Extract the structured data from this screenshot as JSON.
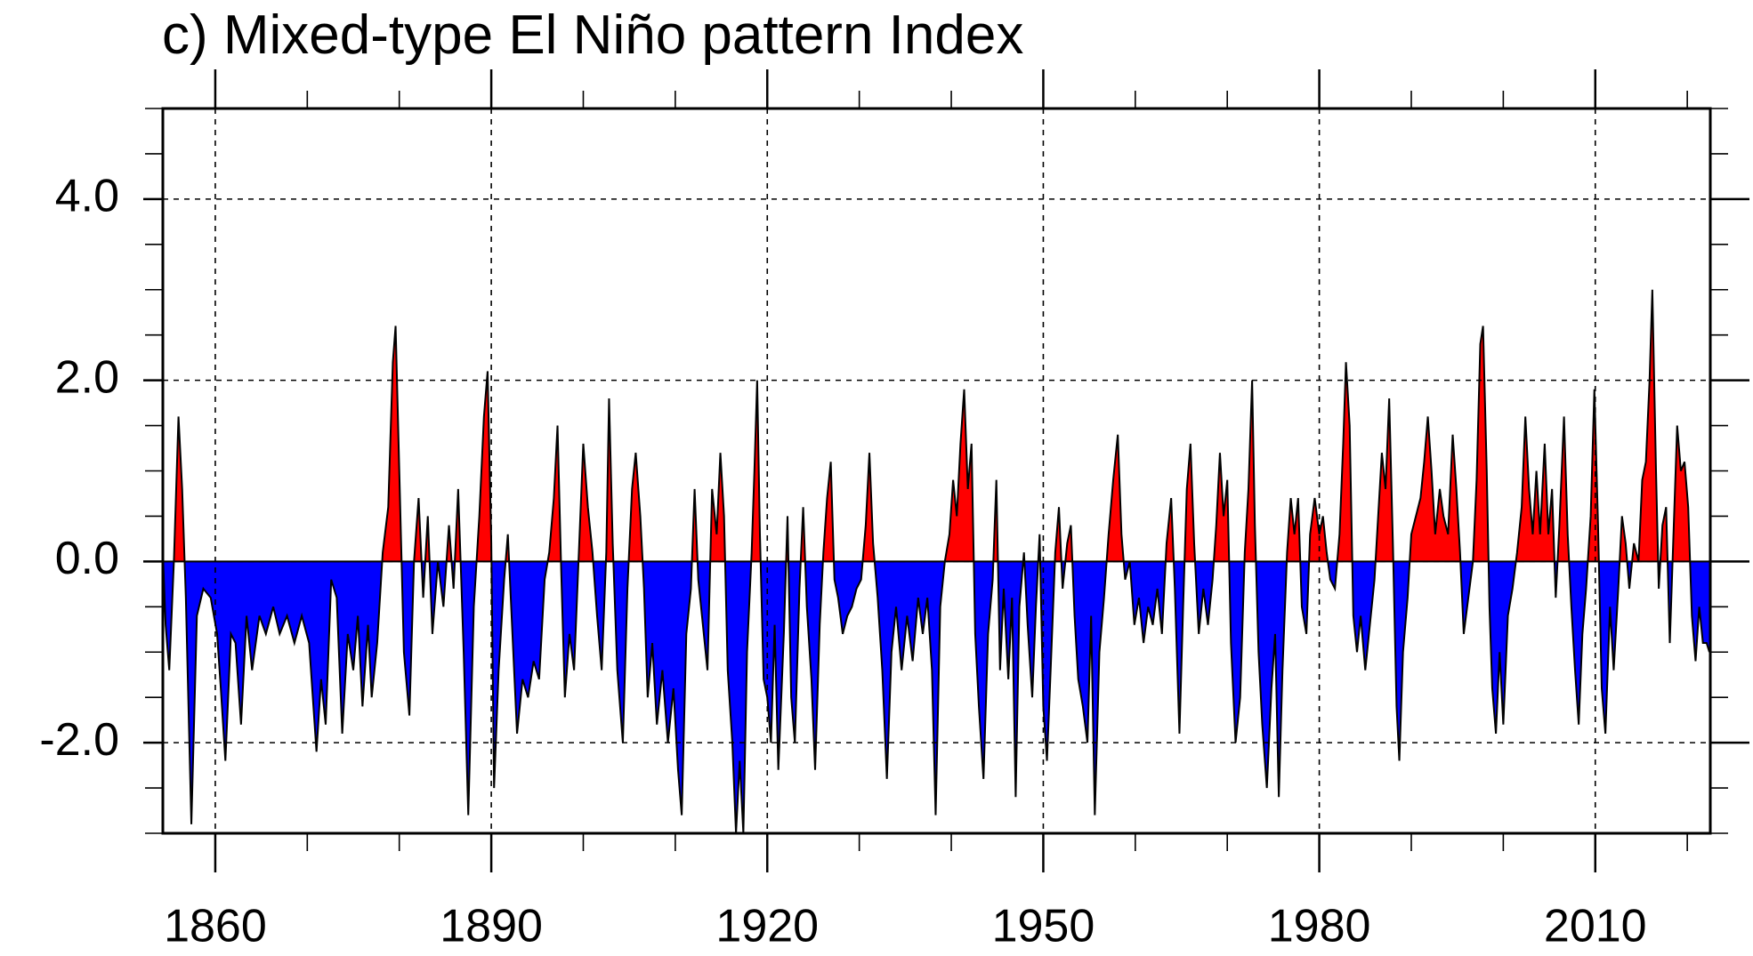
{
  "chart_data": {
    "type": "area",
    "title": "c) Mixed-type El Niño pattern Index",
    "xlim": [
      1854.3,
      2022.5
    ],
    "ylim": [
      -3,
      5
    ],
    "xticks": [
      1860,
      1890,
      1920,
      1950,
      1980,
      2010
    ],
    "yticks": [
      {
        "value": -2,
        "label": "-2.0"
      },
      {
        "value": 0,
        "label": "0.0"
      },
      {
        "value": 2,
        "label": "2.0"
      },
      {
        "value": 4,
        "label": "4.0"
      }
    ],
    "grid": true,
    "positive_color": "#ff0000",
    "negative_color": "#0000ff",
    "line_color": "#000000",
    "x": [
      1854.3,
      1854.6,
      1855.0,
      1855.5,
      1856.0,
      1856.4,
      1856.8,
      1857.4,
      1858.0,
      1858.7,
      1859.5,
      1860.2,
      1860.6,
      1861.1,
      1861.7,
      1862.2,
      1862.8,
      1863.4,
      1864.0,
      1864.8,
      1865.5,
      1866.3,
      1867.0,
      1867.8,
      1868.6,
      1869.4,
      1870.2,
      1871.0,
      1871.5,
      1872.0,
      1872.6,
      1873.2,
      1873.8,
      1874.4,
      1875.0,
      1875.5,
      1876.0,
      1876.6,
      1877.0,
      1877.6,
      1878.2,
      1878.8,
      1879.3,
      1879.6,
      1880.0,
      1880.5,
      1881.1,
      1881.6,
      1882.1,
      1882.6,
      1883.1,
      1883.6,
      1884.2,
      1884.8,
      1885.4,
      1885.9,
      1886.4,
      1887.0,
      1887.5,
      1888.1,
      1888.7,
      1889.2,
      1889.6,
      1890.0,
      1890.3,
      1890.8,
      1891.4,
      1891.8,
      1892.3,
      1892.8,
      1893.4,
      1894.0,
      1894.6,
      1895.2,
      1895.8,
      1896.3,
      1896.8,
      1897.2,
      1897.6,
      1898.0,
      1898.5,
      1899.0,
      1899.6,
      1900.0,
      1900.5,
      1901.0,
      1901.5,
      1902.0,
      1902.5,
      1902.8,
      1903.2,
      1903.7,
      1904.3,
      1904.8,
      1905.3,
      1905.7,
      1906.2,
      1906.6,
      1907.0,
      1907.5,
      1908.0,
      1908.6,
      1909.2,
      1909.8,
      1910.3,
      1910.7,
      1911.2,
      1911.7,
      1912.1,
      1912.5,
      1912.9,
      1913.5,
      1914.0,
      1914.5,
      1914.9,
      1915.3,
      1915.7,
      1916.2,
      1916.6,
      1917.0,
      1917.4,
      1917.8,
      1918.3,
      1918.6,
      1918.9,
      1919.2,
      1919.6,
      1920.0,
      1920.4,
      1920.8,
      1921.2,
      1921.8,
      1922.2,
      1922.6,
      1923.0,
      1923.5,
      1923.9,
      1924.3,
      1924.8,
      1925.2,
      1925.7,
      1926.1,
      1926.5,
      1926.9,
      1927.3,
      1927.7,
      1928.2,
      1928.7,
      1929.2,
      1929.7,
      1930.2,
      1930.7,
      1931.1,
      1931.5,
      1932.0,
      1932.5,
      1933.0,
      1933.5,
      1934.0,
      1934.6,
      1935.2,
      1935.8,
      1936.4,
      1936.9,
      1937.4,
      1937.9,
      1938.3,
      1938.8,
      1939.3,
      1939.8,
      1940.2,
      1940.6,
      1941.0,
      1941.4,
      1941.8,
      1942.2,
      1942.6,
      1943.0,
      1943.5,
      1944.0,
      1944.5,
      1944.9,
      1945.3,
      1945.7,
      1946.2,
      1946.6,
      1947.0,
      1947.4,
      1947.9,
      1948.3,
      1948.8,
      1949.2,
      1949.6,
      1950.0,
      1950.4,
      1950.8,
      1951.3,
      1951.7,
      1952.1,
      1952.6,
      1953.0,
      1953.4,
      1953.8,
      1954.3,
      1954.8,
      1955.2,
      1955.6,
      1956.1,
      1956.6,
      1957.1,
      1957.6,
      1958.1,
      1958.5,
      1958.9,
      1959.4,
      1959.9,
      1960.4,
      1960.9,
      1961.4,
      1961.9,
      1962.4,
      1962.9,
      1963.4,
      1963.9,
      1964.3,
      1964.8,
      1965.2,
      1965.6,
      1966.0,
      1966.4,
      1966.9,
      1967.4,
      1967.9,
      1968.4,
      1968.8,
      1969.2,
      1969.6,
      1970.0,
      1970.4,
      1970.9,
      1971.4,
      1971.9,
      1972.3,
      1972.7,
      1973.0,
      1973.4,
      1973.8,
      1974.3,
      1974.8,
      1975.2,
      1975.6,
      1976.0,
      1976.5,
      1976.9,
      1977.3,
      1977.7,
      1978.1,
      1978.6,
      1979.0,
      1979.5,
      1980.0,
      1980.4,
      1980.8,
      1981.2,
      1981.7,
      1982.2,
      1982.6,
      1982.9,
      1983.3,
      1983.7,
      1984.1,
      1984.5,
      1985.0,
      1985.5,
      1986.0,
      1986.4,
      1986.8,
      1987.2,
      1987.6,
      1988.0,
      1988.4,
      1988.7,
      1989.1,
      1989.6,
      1990.0,
      1990.5,
      1991.0,
      1991.4,
      1991.8,
      1992.2,
      1992.6,
      1993.1,
      1993.5,
      1994.0,
      1994.5,
      1994.9,
      1995.3,
      1995.7,
      1996.2,
      1996.7,
      1997.1,
      1997.5,
      1997.8,
      1998.2,
      1998.5,
      1998.8,
      1999.2,
      1999.6,
      2000.0,
      2000.5,
      2001.0,
      2001.5,
      2002.0,
      2002.4,
      2002.8,
      2003.2,
      2003.6,
      2004.0,
      2004.5,
      2004.9,
      2005.3,
      2005.7,
      2006.1,
      2006.6,
      2007.0,
      2007.4,
      2007.8,
      2008.2,
      2008.6,
      2009.0,
      2009.5,
      2009.9,
      2010.3,
      2010.7,
      2011.1,
      2011.6,
      2012.0,
      2012.5,
      2012.9,
      2013.3,
      2013.7,
      2014.2,
      2014.7,
      2015.1,
      2015.5,
      2015.9,
      2016.2,
      2016.6,
      2016.9,
      2017.3,
      2017.7,
      2018.1,
      2018.5,
      2018.9,
      2019.3,
      2019.7,
      2020.1,
      2020.5,
      2020.9,
      2021.3,
      2021.7,
      2022.1,
      2022.4
    ],
    "values": [
      0.1,
      -0.7,
      -1.2,
      0.0,
      1.6,
      0.8,
      -0.4,
      -2.9,
      -0.6,
      -0.3,
      -0.4,
      -0.8,
      -1.4,
      -2.2,
      -0.8,
      -0.9,
      -1.8,
      -0.6,
      -1.2,
      -0.6,
      -0.8,
      -0.5,
      -0.8,
      -0.6,
      -0.9,
      -0.6,
      -0.9,
      -2.1,
      -1.3,
      -1.8,
      -0.2,
      -0.4,
      -1.9,
      -0.8,
      -1.2,
      -0.6,
      -1.6,
      -0.7,
      -1.5,
      -0.9,
      0.1,
      0.6,
      2.2,
      2.6,
      1.0,
      -1.0,
      -1.7,
      0.0,
      0.7,
      -0.4,
      0.5,
      -0.8,
      0.0,
      -0.5,
      0.4,
      -0.3,
      0.8,
      -1.0,
      -2.8,
      -0.5,
      0.5,
      1.6,
      2.1,
      0.2,
      -2.5,
      -1.2,
      -0.2,
      0.3,
      -0.8,
      -1.9,
      -1.3,
      -1.5,
      -1.1,
      -1.3,
      -0.2,
      0.1,
      0.7,
      1.5,
      -0.1,
      -1.5,
      -0.8,
      -1.2,
      0.3,
      1.3,
      0.6,
      0.1,
      -0.6,
      -1.2,
      0.1,
      1.8,
      0.2,
      -1.2,
      -2.0,
      -0.3,
      0.8,
      1.2,
      0.5,
      -0.3,
      -1.5,
      -0.9,
      -1.8,
      -1.2,
      -2.0,
      -1.4,
      -2.3,
      -2.8,
      -0.8,
      -0.3,
      0.8,
      -0.2,
      -0.6,
      -1.2,
      0.8,
      0.3,
      1.2,
      0.5,
      -1.2,
      -2.0,
      -3.0,
      -2.2,
      -3.0,
      -1.0,
      0.1,
      1.0,
      2.0,
      0.3,
      -1.3,
      -1.5,
      -2.0,
      -0.7,
      -2.3,
      -0.8,
      0.5,
      -1.5,
      -2.0,
      -0.3,
      0.6,
      -0.5,
      -1.3,
      -2.3,
      -0.7,
      0.1,
      0.7,
      1.1,
      -0.2,
      -0.4,
      -0.8,
      -0.6,
      -0.5,
      -0.3,
      -0.2,
      0.4,
      1.2,
      0.2,
      -0.4,
      -1.2,
      -2.4,
      -1.0,
      -0.5,
      -1.2,
      -0.6,
      -1.1,
      -0.4,
      -0.8,
      -0.4,
      -1.2,
      -2.8,
      -0.5,
      0.0,
      0.3,
      0.9,
      0.5,
      1.3,
      1.9,
      0.8,
      1.3,
      -0.8,
      -1.6,
      -2.4,
      -0.8,
      -0.2,
      0.9,
      -1.2,
      -0.3,
      -1.3,
      -0.4,
      -2.6,
      -0.5,
      0.1,
      -0.7,
      -1.5,
      -0.5,
      0.3,
      -1.6,
      -2.2,
      -1.2,
      0.1,
      0.6,
      -0.3,
      0.2,
      0.4,
      -0.6,
      -1.3,
      -1.6,
      -2.0,
      -0.6,
      -2.8,
      -1.0,
      -0.4,
      0.3,
      0.9,
      1.4,
      0.3,
      -0.2,
      0.0,
      -0.7,
      -0.4,
      -0.9,
      -0.5,
      -0.7,
      -0.3,
      -0.8,
      0.2,
      0.7,
      -0.3,
      -1.9,
      -0.5,
      0.8,
      1.3,
      0.2,
      -0.8,
      -0.3,
      -0.7,
      -0.2,
      0.4,
      1.2,
      0.5,
      0.9,
      -0.9,
      -2.0,
      -1.5,
      0.1,
      0.8,
      2.0,
      0.4,
      -1.0,
      -1.8,
      -2.5,
      -1.4,
      -0.8,
      -2.6,
      -1.2,
      0.1,
      0.7,
      0.3,
      0.7,
      -0.5,
      -0.8,
      0.3,
      0.7,
      0.3,
      0.5,
      0.1,
      -0.2,
      -0.3,
      0.3,
      1.3,
      2.2,
      1.5,
      -0.6,
      -1.0,
      -0.6,
      -1.2,
      -0.7,
      -0.2,
      0.5,
      1.2,
      0.8,
      1.8,
      0.2,
      -1.6,
      -2.2,
      -1.0,
      -0.4,
      0.3,
      0.5,
      0.7,
      1.1,
      1.6,
      1.0,
      0.3,
      0.8,
      0.5,
      0.3,
      1.4,
      0.8,
      0.1,
      -0.8,
      -0.4,
      0.0,
      0.9,
      2.4,
      2.6,
      1.0,
      -0.5,
      -1.4,
      -1.9,
      -1.0,
      -1.8,
      -0.6,
      -0.3,
      0.1,
      0.6,
      1.6,
      0.8,
      0.3,
      1.0,
      0.3,
      1.3,
      0.3,
      0.8,
      -0.4,
      0.4,
      1.6,
      0.3,
      -0.5,
      -1.2,
      -1.8,
      -0.8,
      -0.3,
      0.5,
      1.9,
      0.4,
      -1.4,
      -1.9,
      -0.5,
      -1.2,
      -0.3,
      0.5,
      0.2,
      -0.3,
      0.2,
      0.0,
      0.9,
      1.1,
      2.0,
      3.0,
      1.0,
      -0.3,
      0.4,
      0.6,
      -0.9,
      0.3,
      1.5,
      1.0,
      1.1,
      0.6,
      -0.6,
      -1.1,
      -0.5,
      -0.9,
      -0.9,
      -1.0
    ]
  }
}
